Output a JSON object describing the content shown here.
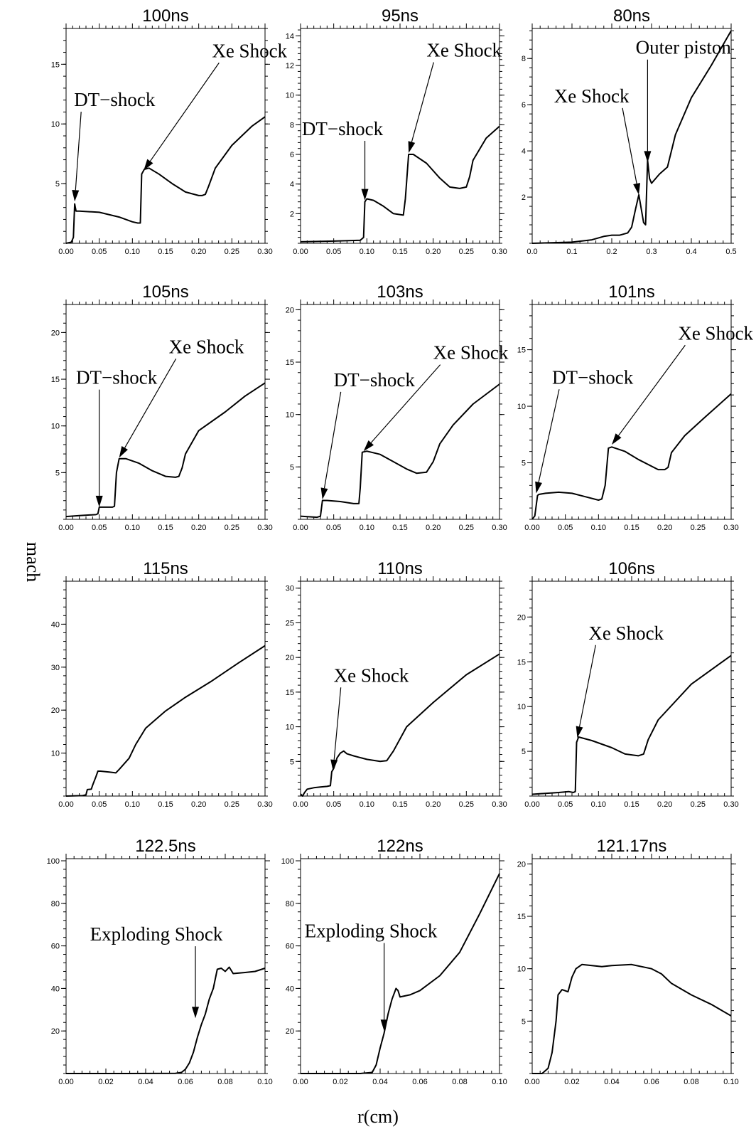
{
  "xlabel": "r(cm)",
  "ylabel": "mach",
  "chart_data": [
    {
      "type": "line",
      "title": "100ns",
      "xlim": [
        0,
        0.3
      ],
      "ylim": [
        0,
        18
      ],
      "xticks": [
        "0.00",
        "0.05",
        "0.10",
        "0.15",
        "0.20",
        "0.25",
        "0.30"
      ],
      "yticks": [
        "5",
        "10",
        "15"
      ],
      "x": [
        0,
        0.008,
        0.011,
        0.013,
        0.015,
        0.02,
        0.05,
        0.08,
        0.1,
        0.108,
        0.112,
        0.114,
        0.118,
        0.125,
        0.14,
        0.16,
        0.18,
        0.2,
        0.205,
        0.21,
        0.215,
        0.225,
        0.25,
        0.28,
        0.3
      ],
      "y": [
        0,
        0.1,
        0.5,
        3.3,
        2.7,
        2.7,
        2.6,
        2.2,
        1.8,
        1.7,
        1.7,
        5.8,
        6.2,
        6.3,
        5.8,
        5,
        4.3,
        4,
        4,
        4.1,
        4.8,
        6.3,
        8.2,
        9.8,
        10.6
      ],
      "annotations": [
        {
          "text": "DT−shock",
          "x": 0.012,
          "y": 11.5,
          "ax": 0.013,
          "ay": 3.5
        },
        {
          "text": "Xe Shock",
          "x": 0.22,
          "y": 15.6,
          "ax": 0.117,
          "ay": 6.1
        }
      ]
    },
    {
      "type": "line",
      "title": "95ns",
      "xlim": [
        0,
        0.3
      ],
      "ylim": [
        0,
        14.5
      ],
      "xticks": [
        "0.00",
        "0.05",
        "0.10",
        "0.15",
        "0.20",
        "0.25",
        "0.30"
      ],
      "yticks": [
        "2",
        "4",
        "6",
        "8",
        "10",
        "12",
        "14"
      ],
      "x": [
        0,
        0.05,
        0.09,
        0.095,
        0.097,
        0.1,
        0.11,
        0.125,
        0.14,
        0.155,
        0.158,
        0.163,
        0.17,
        0.19,
        0.21,
        0.225,
        0.24,
        0.25,
        0.255,
        0.26,
        0.28,
        0.3
      ],
      "y": [
        0.1,
        0.15,
        0.2,
        0.4,
        2.8,
        3,
        2.9,
        2.5,
        2,
        1.9,
        3,
        6,
        6,
        5.4,
        4.4,
        3.8,
        3.7,
        3.8,
        4.5,
        5.6,
        7.1,
        7.9
      ],
      "annotations": [
        {
          "text": "DT−shock",
          "x": 0.002,
          "y": 7.3,
          "ax": 0.097,
          "ay": 2.9
        },
        {
          "text": "Xe Shock",
          "x": 0.19,
          "y": 12.6,
          "ax": 0.163,
          "ay": 6.1
        }
      ]
    },
    {
      "type": "line",
      "title": "80ns",
      "xlim": [
        0,
        0.5
      ],
      "ylim": [
        0,
        9.3
      ],
      "xticks": [
        "0.0",
        "0.1",
        "0.2",
        "0.3",
        "0.4",
        "0.5"
      ],
      "yticks": [
        "2",
        "4",
        "6",
        "8"
      ],
      "x": [
        0,
        0.1,
        0.15,
        0.18,
        0.2,
        0.22,
        0.24,
        0.25,
        0.26,
        0.268,
        0.275,
        0.28,
        0.285,
        0.29,
        0.295,
        0.3,
        0.32,
        0.34,
        0.36,
        0.4,
        0.45,
        0.5
      ],
      "y": [
        0,
        0.05,
        0.15,
        0.3,
        0.35,
        0.35,
        0.45,
        0.7,
        1.5,
        2.1,
        1.4,
        0.9,
        0.8,
        3.6,
        2.8,
        2.6,
        3,
        3.3,
        4.7,
        6.3,
        7.7,
        9.2
      ],
      "annotations": [
        {
          "text": "Xe Shock",
          "x": 0.055,
          "y": 6.1,
          "ax": 0.268,
          "ay": 2.1
        },
        {
          "text": "Outer piston",
          "x": 0.26,
          "y": 8.2,
          "ax": 0.29,
          "ay": 3.5
        }
      ]
    },
    {
      "type": "line",
      "title": "105ns",
      "xlim": [
        0,
        0.3
      ],
      "ylim": [
        0,
        23
      ],
      "xticks": [
        "0.00",
        "0.05",
        "0.10",
        "0.15",
        "0.20",
        "0.25",
        "0.30"
      ],
      "yticks": [
        "5",
        "10",
        "15",
        "20"
      ],
      "x": [
        0,
        0.02,
        0.045,
        0.048,
        0.05,
        0.052,
        0.07,
        0.073,
        0.076,
        0.08,
        0.09,
        0.11,
        0.13,
        0.15,
        0.165,
        0.17,
        0.175,
        0.18,
        0.2,
        0.24,
        0.27,
        0.3
      ],
      "y": [
        0.3,
        0.4,
        0.5,
        0.6,
        1.3,
        1.3,
        1.3,
        1.4,
        5,
        6.5,
        6.5,
        6,
        5.2,
        4.6,
        4.5,
        4.6,
        5.5,
        7,
        9.5,
        11.5,
        13.2,
        14.6
      ],
      "annotations": [
        {
          "text": "DT−shock",
          "x": 0.015,
          "y": 14.5,
          "ax": 0.05,
          "ay": 1.3
        },
        {
          "text": "Xe Shock",
          "x": 0.155,
          "y": 17.8,
          "ax": 0.08,
          "ay": 6.6
        }
      ]
    },
    {
      "type": "line",
      "title": "103ns",
      "xlim": [
        0,
        0.3
      ],
      "ylim": [
        0,
        20.5
      ],
      "xticks": [
        "0.00",
        "0.05",
        "0.10",
        "0.15",
        "0.20",
        "0.25",
        "0.30"
      ],
      "yticks": [
        "5",
        "10",
        "15",
        "20"
      ],
      "x": [
        0,
        0.025,
        0.03,
        0.033,
        0.04,
        0.06,
        0.08,
        0.088,
        0.09,
        0.093,
        0.1,
        0.12,
        0.14,
        0.16,
        0.175,
        0.19,
        0.2,
        0.21,
        0.23,
        0.26,
        0.3
      ],
      "y": [
        0.3,
        0.2,
        0.3,
        1.8,
        1.8,
        1.7,
        1.5,
        1.5,
        3,
        6.4,
        6.5,
        6.2,
        5.5,
        4.8,
        4.4,
        4.5,
        5.5,
        7.2,
        9,
        11,
        12.9
      ],
      "annotations": [
        {
          "text": "DT−shock",
          "x": 0.05,
          "y": 12.7,
          "ax": 0.033,
          "ay": 1.9
        },
        {
          "text": "Xe Shock",
          "x": 0.2,
          "y": 15.3,
          "ax": 0.095,
          "ay": 6.5
        }
      ]
    },
    {
      "type": "line",
      "title": "101ns",
      "xlim": [
        0,
        0.3
      ],
      "ylim": [
        0,
        19
      ],
      "xticks": [
        "0.00",
        "0.05",
        "0.10",
        "0.15",
        "0.20",
        "0.25",
        "0.30"
      ],
      "yticks": [
        "5",
        "10",
        "15"
      ],
      "x": [
        0,
        0.004,
        0.008,
        0.01,
        0.02,
        0.04,
        0.06,
        0.08,
        0.1,
        0.105,
        0.11,
        0.115,
        0.12,
        0.14,
        0.16,
        0.19,
        0.2,
        0.205,
        0.21,
        0.23,
        0.26,
        0.3
      ],
      "y": [
        0,
        0.3,
        2.1,
        2.2,
        2.3,
        2.4,
        2.3,
        2,
        1.7,
        1.8,
        3,
        6.3,
        6.4,
        6,
        5.3,
        4.4,
        4.4,
        4.6,
        5.9,
        7.4,
        9,
        11.1
      ],
      "annotations": [
        {
          "text": "DT−shock",
          "x": 0.03,
          "y": 12,
          "ax": 0.006,
          "ay": 2.3
        },
        {
          "text": "Xe Shock",
          "x": 0.22,
          "y": 15.9,
          "ax": 0.12,
          "ay": 6.6
        }
      ]
    },
    {
      "type": "line",
      "title": "115ns",
      "xlim": [
        0,
        0.3
      ],
      "ylim": [
        0,
        50
      ],
      "xticks": [
        "0.00",
        "0.05",
        "0.10",
        "0.15",
        "0.20",
        "0.25",
        "0.30"
      ],
      "yticks": [
        "10",
        "20",
        "30",
        "40"
      ],
      "x": [
        0,
        0.025,
        0.03,
        0.032,
        0.038,
        0.04,
        0.045,
        0.048,
        0.052,
        0.065,
        0.075,
        0.08,
        0.095,
        0.105,
        0.12,
        0.15,
        0.18,
        0.22,
        0.26,
        0.3
      ],
      "y": [
        0,
        0.1,
        0.3,
        1.5,
        1.6,
        2.5,
        4.5,
        5.8,
        5.8,
        5.6,
        5.4,
        6.2,
        8.8,
        12,
        15.8,
        19.8,
        23,
        26.8,
        31,
        35
      ],
      "annotations": []
    },
    {
      "type": "line",
      "title": "110ns",
      "xlim": [
        0,
        0.3
      ],
      "ylim": [
        0,
        31
      ],
      "xticks": [
        "0.00",
        "0.05",
        "0.10",
        "0.15",
        "0.20",
        "0.25",
        "0.30"
      ],
      "yticks": [
        "5",
        "10",
        "15",
        "20",
        "25",
        "30"
      ],
      "x": [
        0,
        0.003,
        0.006,
        0.01,
        0.02,
        0.03,
        0.04,
        0.045,
        0.047,
        0.05,
        0.055,
        0.06,
        0.065,
        0.07,
        0.08,
        0.1,
        0.12,
        0.13,
        0.14,
        0.16,
        0.2,
        0.25,
        0.3
      ],
      "y": [
        0.3,
        0,
        0.5,
        1,
        1.2,
        1.3,
        1.4,
        1.5,
        3.5,
        4,
        5.5,
        6.2,
        6.5,
        6.1,
        5.8,
        5.3,
        5,
        5.1,
        6.5,
        10,
        13.5,
        17.5,
        20.5
      ],
      "annotations": [
        {
          "text": "Xe Shock",
          "x": 0.05,
          "y": 16.5,
          "ax": 0.049,
          "ay": 3.6
        }
      ]
    },
    {
      "type": "line",
      "title": "106ns",
      "xlim": [
        0,
        0.3
      ],
      "ylim": [
        0,
        24
      ],
      "xticks": [
        "0.00",
        "0.05",
        "0.10",
        "0.15",
        "0.20",
        "0.25",
        "0.30"
      ],
      "yticks": [
        "5",
        "10",
        "15",
        "20"
      ],
      "x": [
        0,
        0.02,
        0.04,
        0.055,
        0.062,
        0.065,
        0.067,
        0.07,
        0.09,
        0.12,
        0.14,
        0.16,
        0.168,
        0.175,
        0.19,
        0.24,
        0.3
      ],
      "y": [
        0.2,
        0.3,
        0.4,
        0.5,
        0.4,
        0.5,
        6,
        6.6,
        6.2,
        5.4,
        4.7,
        4.5,
        4.7,
        6.3,
        8.5,
        12.5,
        15.7
      ],
      "annotations": [
        {
          "text": "Xe Shock",
          "x": 0.085,
          "y": 17.5,
          "ax": 0.068,
          "ay": 6.5
        }
      ]
    },
    {
      "type": "line",
      "title": "122.5ns",
      "xlim": [
        0,
        0.1
      ],
      "ylim": [
        0,
        101
      ],
      "xticks": [
        "0.00",
        "0.02",
        "0.04",
        "0.06",
        "0.08",
        "0.10"
      ],
      "yticks": [
        "20",
        "40",
        "60",
        "80",
        "100"
      ],
      "x": [
        0,
        0.03,
        0.055,
        0.058,
        0.06,
        0.062,
        0.064,
        0.066,
        0.068,
        0.07,
        0.072,
        0.074,
        0.076,
        0.078,
        0.08,
        0.082,
        0.084,
        0.09,
        0.095,
        0.1
      ],
      "y": [
        0,
        0,
        0.1,
        0.5,
        2,
        5,
        10,
        17,
        23,
        28,
        35,
        40,
        49,
        49.5,
        48,
        50,
        47,
        47.5,
        48,
        49.5
      ],
      "annotations": [
        {
          "text": "Exploding Shock",
          "x": 0.012,
          "y": 62.5,
          "ax": 0.065,
          "ay": 26
        }
      ]
    },
    {
      "type": "line",
      "title": "122ns",
      "xlim": [
        0,
        0.1
      ],
      "ylim": [
        0,
        101
      ],
      "xticks": [
        "0.00",
        "0.02",
        "0.04",
        "0.06",
        "0.08",
        "0.10"
      ],
      "yticks": [
        "20",
        "40",
        "60",
        "80",
        "100"
      ],
      "x": [
        0,
        0.03,
        0.036,
        0.038,
        0.04,
        0.042,
        0.044,
        0.046,
        0.048,
        0.049,
        0.05,
        0.055,
        0.06,
        0.07,
        0.08,
        0.09,
        0.1
      ],
      "y": [
        0,
        0,
        0.5,
        4,
        12,
        19,
        28,
        35,
        40,
        39,
        36,
        37,
        39,
        46,
        57,
        75,
        94
      ],
      "annotations": [
        {
          "text": "Exploding Shock",
          "x": 0.002,
          "y": 64,
          "ax": 0.042,
          "ay": 20
        }
      ]
    },
    {
      "type": "line",
      "title": "121.17ns",
      "xlim": [
        0,
        0.1
      ],
      "ylim": [
        0,
        20.5
      ],
      "xticks": [
        "0.00",
        "0.02",
        "0.04",
        "0.06",
        "0.08",
        "0.10"
      ],
      "yticks": [
        "5",
        "10",
        "15",
        "20"
      ],
      "x": [
        0,
        0.005,
        0.008,
        0.01,
        0.012,
        0.013,
        0.015,
        0.018,
        0.02,
        0.022,
        0.025,
        0.03,
        0.035,
        0.04,
        0.05,
        0.06,
        0.065,
        0.07,
        0.08,
        0.09,
        0.1
      ],
      "y": [
        0,
        0,
        0.5,
        2,
        5,
        7.5,
        8,
        7.8,
        9.2,
        10,
        10.4,
        10.3,
        10.2,
        10.3,
        10.4,
        10,
        9.5,
        8.6,
        7.5,
        6.6,
        5.5
      ],
      "annotations": []
    }
  ]
}
